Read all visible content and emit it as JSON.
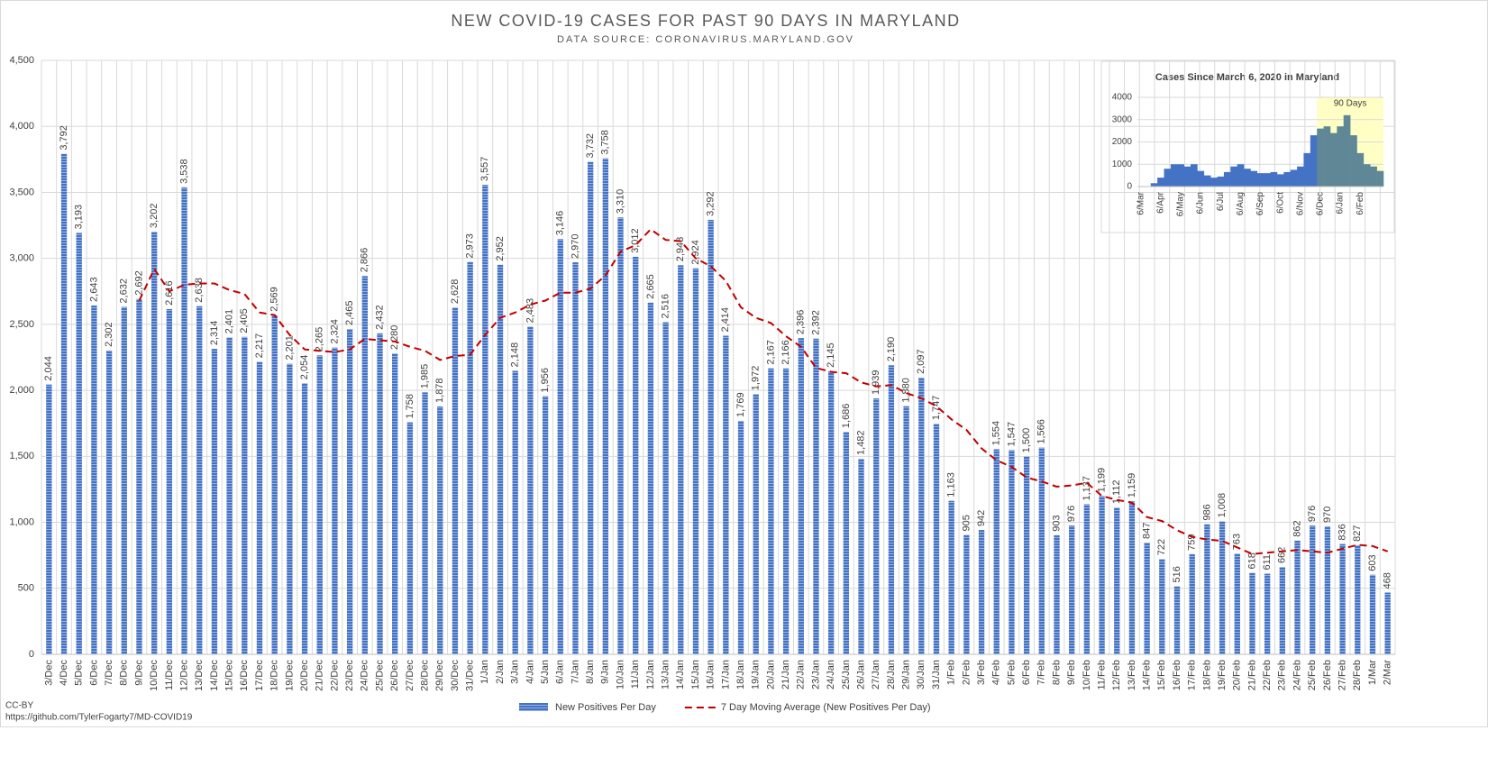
{
  "chart_data": [
    {
      "type": "bar",
      "title": "NEW COVID-19 CASES FOR PAST 90 DAYS IN MARYLAND",
      "subtitle": "DATA SOURCE: CORONAVIRUS.MARYLAND.GOV",
      "categories": [
        "3/Dec",
        "4/Dec",
        "5/Dec",
        "6/Dec",
        "7/Dec",
        "8/Dec",
        "9/Dec",
        "10/Dec",
        "11/Dec",
        "12/Dec",
        "13/Dec",
        "14/Dec",
        "15/Dec",
        "16/Dec",
        "17/Dec",
        "18/Dec",
        "19/Dec",
        "20/Dec",
        "21/Dec",
        "22/Dec",
        "23/Dec",
        "24/Dec",
        "25/Dec",
        "26/Dec",
        "27/Dec",
        "28/Dec",
        "29/Dec",
        "30/Dec",
        "31/Dec",
        "1/Jan",
        "2/Jan",
        "3/Jan",
        "4/Jan",
        "5/Jan",
        "6/Jan",
        "7/Jan",
        "8/Jan",
        "9/Jan",
        "10/Jan",
        "11/Jan",
        "12/Jan",
        "13/Jan",
        "14/Jan",
        "15/Jan",
        "16/Jan",
        "17/Jan",
        "18/Jan",
        "19/Jan",
        "20/Jan",
        "21/Jan",
        "22/Jan",
        "23/Jan",
        "24/Jan",
        "25/Jan",
        "26/Jan",
        "27/Jan",
        "28/Jan",
        "29/Jan",
        "30/Jan",
        "31/Jan",
        "1/Feb",
        "2/Feb",
        "3/Feb",
        "4/Feb",
        "5/Feb",
        "6/Feb",
        "7/Feb",
        "8/Feb",
        "9/Feb",
        "10/Feb",
        "11/Feb",
        "12/Feb",
        "13/Feb",
        "14/Feb",
        "15/Feb",
        "16/Feb",
        "17/Feb",
        "18/Feb",
        "19/Feb",
        "20/Feb",
        "21/Feb",
        "22/Feb",
        "23/Feb",
        "24/Feb",
        "25/Feb",
        "26/Feb",
        "27/Feb",
        "28/Feb",
        "1/Mar",
        "2/Mar"
      ],
      "series": [
        {
          "name": "New Positives Per Day",
          "type": "bar",
          "color": "#4472c4",
          "values": [
            2044,
            3792,
            3193,
            2643,
            2302,
            2632,
            2692,
            3202,
            2616,
            3538,
            2638,
            2314,
            2401,
            2405,
            2217,
            2569,
            2201,
            2054,
            2265,
            2324,
            2465,
            2866,
            2432,
            2280,
            1758,
            1985,
            1878,
            2628,
            2973,
            3557,
            2952,
            2148,
            2483,
            1956,
            3146,
            2970,
            3732,
            3758,
            3310,
            3012,
            2665,
            2516,
            2948,
            2924,
            3292,
            2414,
            1769,
            1972,
            2167,
            2166,
            2396,
            2392,
            2145,
            1686,
            1482,
            1939,
            2190,
            1880,
            2097,
            1747,
            1163,
            905,
            942,
            1554,
            1547,
            1500,
            1566,
            903,
            976,
            1137,
            1199,
            1112,
            1159,
            847,
            722,
            516,
            759,
            986,
            1008,
            763,
            618,
            611,
            662,
            862,
            976,
            970,
            836,
            827,
            603,
            468
          ],
          "value_labels": [
            "2,044",
            "3,792",
            "3,193",
            "2,643",
            "2,302",
            "2,632",
            "2,692",
            "3,202",
            "2,616",
            "3,538",
            "2,638",
            "2,314",
            "2,401",
            "2,405",
            "2,217",
            "2,569",
            "2,201",
            "2,054",
            "2,265",
            "2,324",
            "2,465",
            "2,866",
            "2,432",
            "2,280",
            "1,758",
            "1,985",
            "1,878",
            "2,628",
            "2,973",
            "3,557",
            "2,952",
            "2,148",
            "2,483",
            "1,956",
            "3,146",
            "2,970",
            "3,732",
            "3,758",
            "3,310",
            "3,012",
            "2,665",
            "2,516",
            "2,948",
            "2,924",
            "3,292",
            "2,414",
            "1,769",
            "1,972",
            "2,167",
            "2,166",
            "2,396",
            "2,392",
            "2,145",
            "1,686",
            "1,482",
            "1,939",
            "2,190",
            "1,880",
            "2,097",
            "1,747",
            "1,163",
            "905",
            "942",
            "1,554",
            "1,547",
            "1,500",
            "1,566",
            "903",
            "976",
            "1,137",
            "1,199",
            "1,112",
            "1,159",
            "847",
            "722",
            "516",
            "759",
            "986",
            "1,008",
            "763",
            "618",
            "611",
            "662",
            "862",
            "976",
            "970",
            "836",
            "827",
            "603",
            "468"
          ]
        },
        {
          "name": "7 Day Moving Average (New Positives Per Day)",
          "type": "line",
          "dashed": true,
          "color": "#c00000",
          "values": [
            null,
            null,
            null,
            null,
            null,
            null,
            2680,
            2920,
            2750,
            2800,
            2810,
            2810,
            2760,
            2730,
            2590,
            2570,
            2420,
            2310,
            2300,
            2290,
            2310,
            2390,
            2380,
            2370,
            2330,
            2300,
            2230,
            2260,
            2270,
            2420,
            2550,
            2590,
            2650,
            2680,
            2740,
            2740,
            2770,
            2870,
            3050,
            3100,
            3220,
            3140,
            3130,
            3000,
            2940,
            2830,
            2630,
            2550,
            2510,
            2410,
            2330,
            2170,
            2140,
            2130,
            2060,
            2030,
            2040,
            1980,
            1940,
            1880,
            1780,
            1700,
            1560,
            1470,
            1420,
            1340,
            1310,
            1270,
            1280,
            1300,
            1200,
            1170,
            1150,
            1040,
            1010,
            940,
            890,
            870,
            860,
            810,
            760,
            770,
            780,
            790,
            780,
            770,
            800,
            830,
            820,
            780
          ]
        }
      ],
      "ylim": [
        0,
        4500
      ],
      "yticks": [
        0,
        500,
        {
          "value": 1000,
          "label": "1,000"
        },
        {
          "value": 1500,
          "label": "1,500"
        },
        {
          "value": 2000,
          "label": "2,000"
        },
        {
          "value": 2500,
          "label": "2,500"
        },
        {
          "value": 3000,
          "label": "3,000"
        },
        {
          "value": 3500,
          "label": "3,500"
        },
        {
          "value": 4000,
          "label": "4,000"
        },
        {
          "value": 4500,
          "label": "4,500"
        }
      ],
      "grid": true,
      "legend": "bottom",
      "footer": [
        "CC-BY",
        "https://github.com/TylerFogarty7/MD-COVID19"
      ]
    },
    {
      "type": "bar",
      "title": "Cases Since March 6, 2020 in Maryland",
      "categories": [
        "6/Mar",
        null,
        null,
        "6/Apr",
        null,
        null,
        "6/May",
        null,
        null,
        "6/Jun",
        null,
        null,
        "6/Jul",
        null,
        null,
        "6/Aug",
        null,
        null,
        "6/Sep",
        null,
        null,
        "6/Oct",
        null,
        null,
        "6/Nov",
        null,
        null,
        "6/Dec",
        null,
        null,
        "6/Jan",
        null,
        null,
        "6/Feb",
        null,
        null,
        null
      ],
      "values": [
        0,
        20,
        150,
        400,
        800,
        1000,
        1000,
        900,
        1000,
        700,
        500,
        400,
        450,
        650,
        900,
        1000,
        800,
        700,
        600,
        600,
        650,
        550,
        650,
        750,
        900,
        1500,
        2300,
        2600,
        2700,
        2400,
        2700,
        3200,
        2300,
        1500,
        1000,
        900,
        700
      ],
      "color": "#4472c4",
      "highlight": {
        "from": "6/Dec",
        "label": "90 Days",
        "color": "#ffffc5",
        "bar_color": "#5f8796"
      },
      "ylim": [
        0,
        4000
      ],
      "yticks": [
        0,
        1000,
        2000,
        3000,
        4000
      ],
      "grid": true
    }
  ]
}
